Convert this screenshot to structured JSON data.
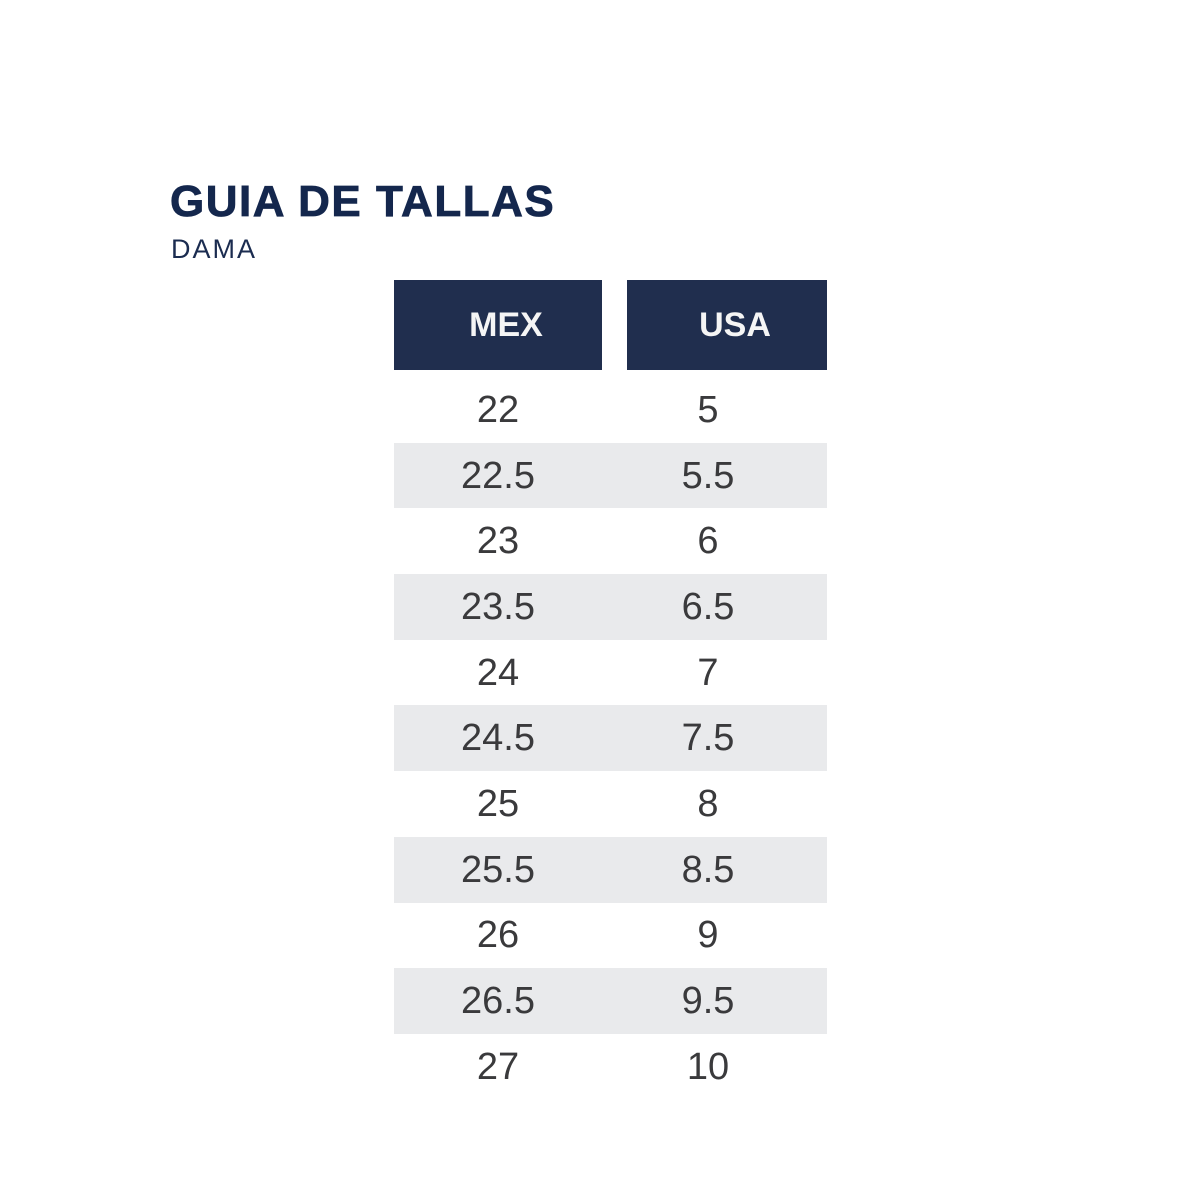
{
  "title": "GUIA DE TALLAS",
  "subtitle": "DAMA",
  "colors": {
    "title_navy": "#14274d",
    "header_block_navy": "#202e4e",
    "header_text": "#f5f5f5",
    "row_stripe": "#e9eaec",
    "number_text": "#3a3a3c",
    "background": "#ffffff"
  },
  "chart_data": {
    "type": "table",
    "title": "GUIA DE TALLAS",
    "subtitle": "DAMA",
    "columns": [
      "MEX",
      "USA"
    ],
    "rows": [
      [
        "22",
        "5"
      ],
      [
        "22.5",
        "5.5"
      ],
      [
        "23",
        "6"
      ],
      [
        "23.5",
        "6.5"
      ],
      [
        "24",
        "7"
      ],
      [
        "24.5",
        "7.5"
      ],
      [
        "25",
        "8"
      ],
      [
        "25.5",
        "8.5"
      ],
      [
        "26",
        "9"
      ],
      [
        "26.5",
        "9.5"
      ],
      [
        "27",
        "10"
      ]
    ],
    "layout": {
      "stripe_pattern": "even rows shaded light gray, stripe spans both columns including gap",
      "header_style": "two separate navy blocks with white bold labels"
    }
  }
}
